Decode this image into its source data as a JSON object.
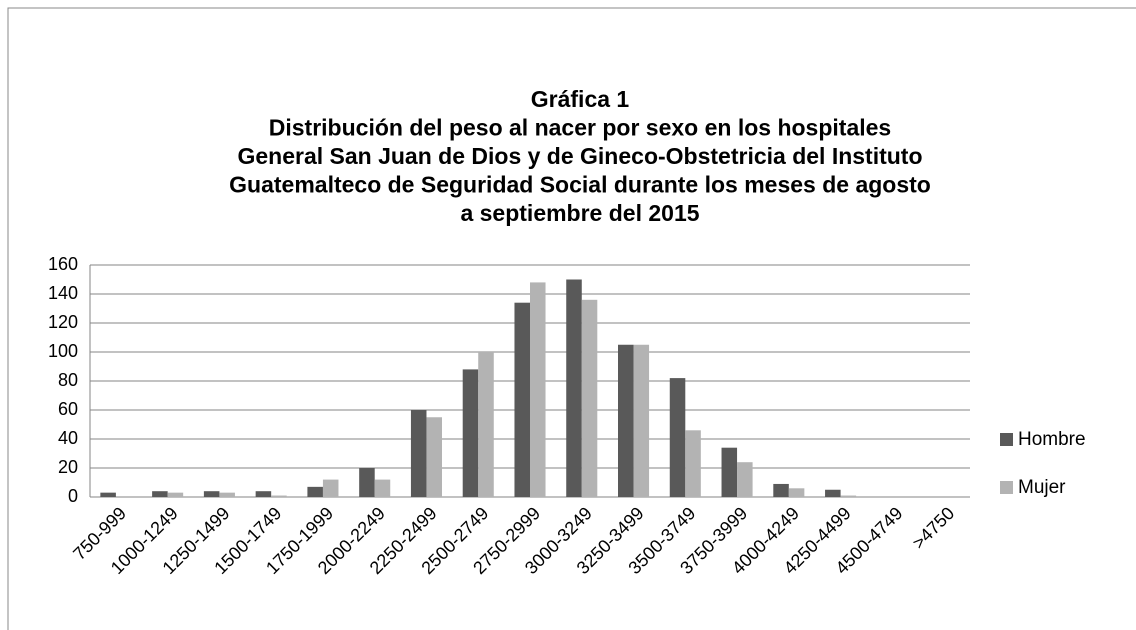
{
  "chart_data": {
    "type": "bar",
    "title": [
      "Gráfica  1",
      "Distribución del peso al nacer por sexo en los hospitales",
      "General San Juan de Dios y de Gineco-Obstetricia del Instituto",
      "Guatemalteco de Seguridad Social durante los meses de agosto",
      "a septiembre del 2015"
    ],
    "categories": [
      "750-999",
      "1000-1249",
      "1250-1499",
      "1500-1749",
      "1750-1999",
      "2000-2249",
      "2250-2499",
      "2500-2749",
      "2750-2999",
      "3000-3249",
      "3250-3499",
      "3500-3749",
      "3750-3999",
      "4000-4249",
      "4250-4499",
      "4500-4749",
      ">4750"
    ],
    "series": [
      {
        "name": "Hombre",
        "color": "#595959",
        "values": [
          3,
          4,
          4,
          4,
          7,
          20,
          60,
          88,
          134,
          150,
          105,
          82,
          34,
          9,
          5,
          0,
          0
        ]
      },
      {
        "name": "Mujer",
        "color": "#b3b3b3",
        "values": [
          0,
          3,
          3,
          1,
          12,
          12,
          55,
          100,
          148,
          136,
          105,
          46,
          24,
          6,
          1,
          0,
          0
        ]
      }
    ],
    "ylim": [
      0,
      160
    ],
    "yticks": [
      0,
      20,
      40,
      60,
      80,
      100,
      120,
      140,
      160
    ],
    "grid": true,
    "legend": "right"
  }
}
